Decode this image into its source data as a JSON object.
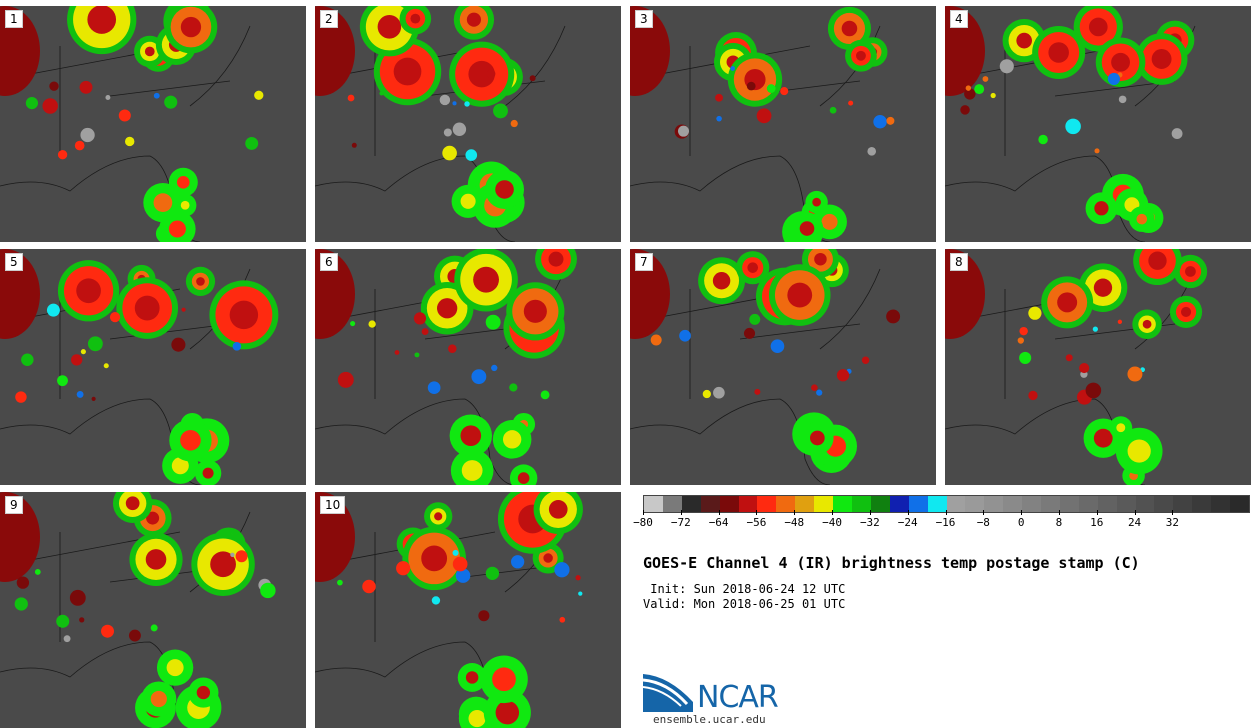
{
  "panels": [
    {
      "label": "1"
    },
    {
      "label": "2"
    },
    {
      "label": "3"
    },
    {
      "label": "4"
    },
    {
      "label": "5"
    },
    {
      "label": "6"
    },
    {
      "label": "7"
    },
    {
      "label": "8"
    },
    {
      "label": "9"
    },
    {
      "label": "10"
    }
  ],
  "colorbar": {
    "colors": [
      "#c8c8c8",
      "#7a7a7a",
      "#2a2a2a",
      "#5a1a1a",
      "#7a0a0a",
      "#c01010",
      "#ff2a10",
      "#f06a10",
      "#e0a010",
      "#e8e800",
      "#10e810",
      "#10c010",
      "#108010",
      "#1020b0",
      "#1070e8",
      "#10e8f0",
      "#a0a0a0",
      "#9a9a9a",
      "#929292",
      "#8a8a8a",
      "#828282",
      "#7a7a7a",
      "#727272",
      "#6a6a6a",
      "#626262",
      "#5a5a5a",
      "#525252",
      "#4a4a4a",
      "#424242",
      "#3a3a3a",
      "#323232",
      "#2a2a2a"
    ],
    "ticks": [
      "−80",
      "−72",
      "−64",
      "−56",
      "−48",
      "−40",
      "−32",
      "−24",
      "−16",
      "−8",
      "0",
      "8",
      "16",
      "24",
      "32"
    ]
  },
  "title": "GOES-E Channel 4 (IR) brightness temp postage stamp (C)",
  "init": " Init: Sun 2018-06-24 12 UTC",
  "valid": "Valid: Mon 2018-06-25 01 UTC",
  "logo": {
    "text": "NCAR",
    "site": "ensemble.ucar.edu"
  }
}
